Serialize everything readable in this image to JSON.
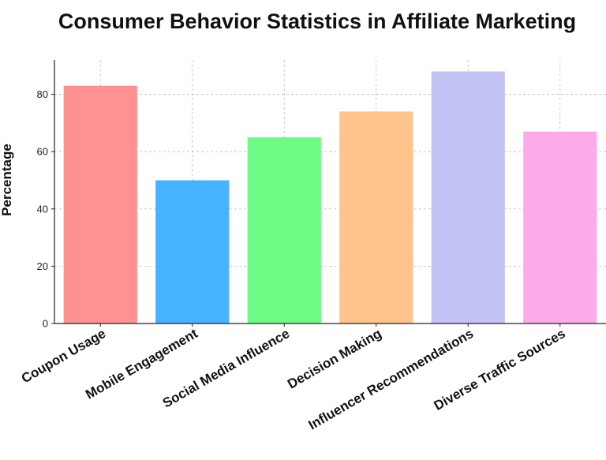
{
  "chart_data": {
    "type": "bar",
    "title": "Consumer Behavior Statistics in Affiliate Marketing",
    "xlabel": "",
    "ylabel": "Percentage",
    "categories": [
      "Coupon Usage",
      "Mobile Engagement",
      "Social Media Influence",
      "Decision Making",
      "Influencer Recommendations",
      "Diverse Traffic Sources"
    ],
    "values": [
      83,
      50,
      65,
      74,
      88,
      67
    ],
    "colors": [
      "#ff9191",
      "#45b3ff",
      "#6dfa85",
      "#ffc48c",
      "#c3c3f5",
      "#fbabe9"
    ],
    "ylim": [
      0,
      92
    ],
    "yticks": [
      0,
      20,
      40,
      60,
      80
    ],
    "grid": true
  }
}
